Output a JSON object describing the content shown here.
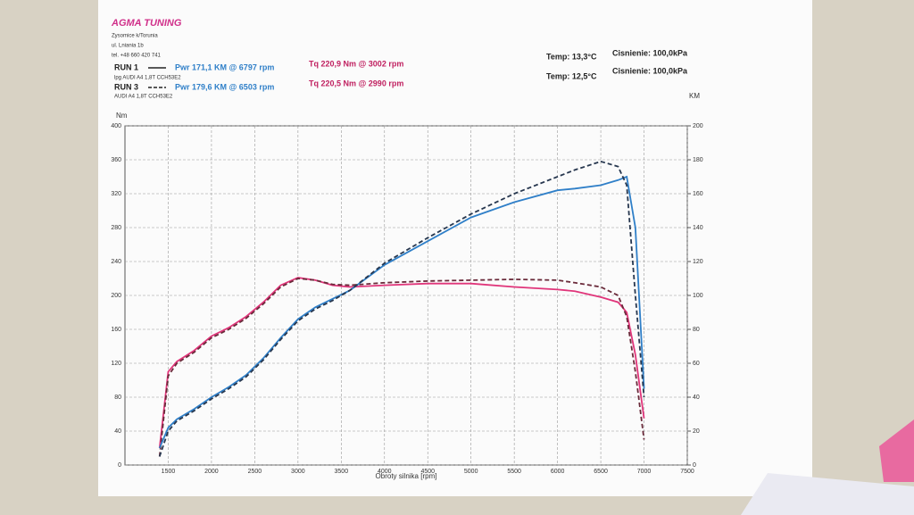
{
  "header": {
    "company": "AGMA TUNING",
    "address": [
      "Zysomice k/Torunia",
      "ul. Lniania 1b",
      "tel. +48 660 420 741"
    ]
  },
  "runs": [
    {
      "label": "RUN 1",
      "power": "Pwr  171,1 KM @ 6797 rpm",
      "torque": "Tq 220,9 Nm @ 3002 rpm",
      "car": "lpg AUDI A4 1,8T CCH53E2",
      "temp": "Temp: 13,3°C",
      "pressure": "Cisnienie: 100,0kPa"
    },
    {
      "label": "RUN 3",
      "power": "Pwr  179,6 KM @ 6503 rpm",
      "torque": "Tq 220,5 Nm @ 2990 rpm",
      "car": "AUDI A4 1,8T CCH53E2",
      "temp": "Temp: 12,5°C",
      "pressure": "Cisnienie: 100,0kPa"
    }
  ],
  "chart_data": {
    "type": "line",
    "xlabel": "Obroty silnika [rpm]",
    "ylabel": "Nm",
    "y2label": "KM",
    "x": [
      1400,
      1500,
      1600,
      1800,
      2000,
      2200,
      2400,
      2600,
      2800,
      3000,
      3200,
      3400,
      3600,
      4000,
      4500,
      5000,
      5500,
      6000,
      6200,
      6500,
      6700,
      6800,
      6900,
      7000
    ],
    "xlim": [
      1000,
      7500
    ],
    "xticks": [
      1500,
      2000,
      2500,
      3000,
      3500,
      4000,
      4500,
      5000,
      5500,
      6000,
      6500,
      7000,
      7500
    ],
    "ylim": [
      0,
      400
    ],
    "yticks": [
      0,
      40,
      80,
      120,
      160,
      200,
      240,
      280,
      320,
      360,
      400
    ],
    "y2lim": [
      0,
      200
    ],
    "y2ticks": [
      0,
      20,
      40,
      60,
      80,
      100,
      120,
      140,
      160,
      180,
      200
    ],
    "grid": true,
    "series": [
      {
        "color": "#e0357a",
        "dashed": false,
        "values": [
          20,
          110,
          122,
          135,
          152,
          162,
          175,
          192,
          212,
          221,
          218,
          212,
          210,
          212,
          214,
          214,
          210,
          207,
          205,
          198,
          192,
          180,
          130,
          55
        ]
      },
      {
        "color": "#6a2a3a",
        "dashed": true,
        "values": [
          10,
          105,
          120,
          133,
          150,
          160,
          173,
          190,
          210,
          220,
          218,
          213,
          212,
          215,
          217,
          218,
          219,
          218,
          215,
          210,
          200,
          175,
          110,
          30
        ]
      },
      {
        "color": "#2f7fc8",
        "dashed": false,
        "axis": "y2",
        "values": [
          10,
          22,
          27,
          33,
          40,
          46,
          53,
          63,
          75,
          86,
          93,
          98,
          103,
          118,
          132,
          146,
          155,
          162,
          163,
          165,
          168,
          170,
          140,
          45
        ]
      },
      {
        "color": "#27374f",
        "dashed": true,
        "axis": "y2",
        "values": [
          5,
          20,
          26,
          32,
          39,
          45,
          52,
          62,
          74,
          85,
          92,
          97,
          103,
          119,
          134,
          148,
          160,
          170,
          174,
          179,
          176,
          165,
          100,
          40
        ]
      }
    ]
  }
}
